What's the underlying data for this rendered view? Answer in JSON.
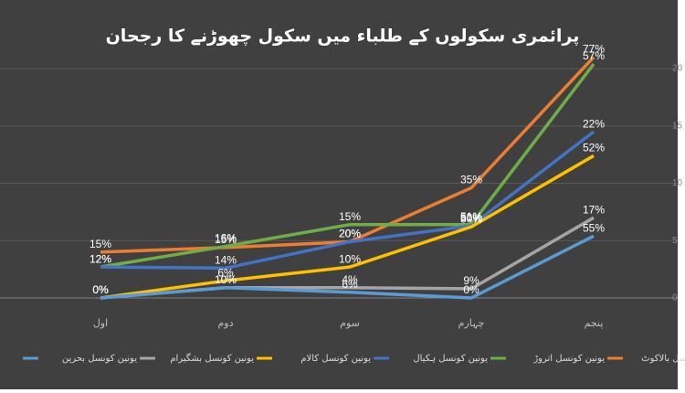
{
  "chart_data": {
    "type": "line",
    "title": "پرائمری سکولوں کے طلباء میں سکول چھوڑنے کا رجحان",
    "categories": [
      "اول",
      "دوم",
      "سوم",
      "چہارم",
      "پنجم"
    ],
    "ylim": [
      0,
      22
    ],
    "yticks": [
      0,
      5,
      10,
      15,
      20
    ],
    "grid": true,
    "series": [
      {
        "name": "یونین کونسل بالاکوٹ",
        "color": "#ed7d31",
        "values": [
          4,
          4.4,
          4.9,
          9.6,
          21
        ],
        "value_labels": [
          "15%",
          "15%",
          "20%",
          "35%",
          "77%"
        ]
      },
      {
        "name": "یونین کونسل اتروڑ",
        "color": "#70ad47",
        "values": [
          2.7,
          4.5,
          6.4,
          6.4,
          20.4
        ],
        "value_labels": [
          "12%",
          "16%",
          "15%",
          "51%",
          "57%"
        ]
      },
      {
        "name": "یونین کونسل ہکیال",
        "color": "#4472c4",
        "values": [
          2.7,
          2.6,
          4.9,
          6.3,
          14.5
        ],
        "value_labels": [
          "12%",
          "14%",
          "20%",
          "50%",
          "22%"
        ]
      },
      {
        "name": "یونین کونسل کالام",
        "color": "#ffc000",
        "values": [
          0,
          1.5,
          2.7,
          6.2,
          12.4
        ],
        "value_labels": [
          "0%",
          "6%",
          "10%",
          "50%",
          "52%"
        ]
      },
      {
        "name": "یونین کونسل بشگیرام",
        "color": "#a5a5a5",
        "values": [
          0,
          0.9,
          0.9,
          0.8,
          7
        ],
        "value_labels": [
          "0%",
          "10%",
          "4%",
          "9%",
          "17%"
        ]
      },
      {
        "name": "یونین کونسل بحرین",
        "color": "#5b9bd5",
        "values": [
          0,
          0.9,
          0.5,
          0,
          5.4
        ],
        "value_labels": [
          "0%",
          "10%",
          "6%",
          "0%",
          "55%"
        ]
      }
    ]
  }
}
